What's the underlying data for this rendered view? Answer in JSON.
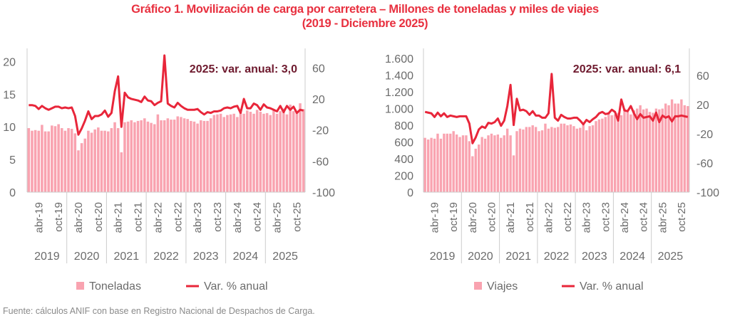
{
  "title": {
    "line1": "Gráfico 1. Movilización de carga por carretera – Millones de toneladas y miles de viajes",
    "line2": "(2019 - Diciembre 2025)"
  },
  "source": "Fuente: cálculos ANIF con base en Registro Nacional de Despachos de Carga.",
  "colors": {
    "bar": "#f9a3b0",
    "line": "#e8263a",
    "annotation": "#6e1a2e",
    "axis_text": "#6b6b6b",
    "grid": "#cccccc"
  },
  "chart_data": [
    {
      "type": "bar+line",
      "id": "toneladas",
      "annotation": "2025: var. anual: 3,0",
      "y_left": {
        "ticks": [
          "0",
          "5",
          "10",
          "15",
          "20"
        ],
        "tick_values": [
          0,
          5,
          10,
          15,
          20
        ],
        "range": [
          0,
          22
        ]
      },
      "y_right": {
        "ticks": [
          "-100",
          "-60",
          "-20",
          "20",
          "60"
        ],
        "tick_values": [
          -100,
          -60,
          -20,
          20,
          60
        ],
        "range": [
          -100,
          85
        ]
      },
      "month_labels": [
        "abr-19",
        "oct-19",
        "abr-20",
        "oct-20",
        "abr-21",
        "oct-21",
        "abr-22",
        "oct-22",
        "abr-23",
        "oct-23",
        "abr-24",
        "oct-24",
        "abr-25",
        "oct-25"
      ],
      "year_labels": [
        "2019",
        "2020",
        "2021",
        "2022",
        "2023",
        "2024",
        "2025"
      ],
      "legend": [
        {
          "label": "Toneladas",
          "kind": "bar"
        },
        {
          "label": "Var. % anual",
          "kind": "line"
        }
      ],
      "series": [
        {
          "name": "Toneladas",
          "axis": "left",
          "kind": "bar",
          "values": [
            9.8,
            9.4,
            9.5,
            9.4,
            10.3,
            9.3,
            9.3,
            10.2,
            10.1,
            10.4,
            9.8,
            9.4,
            9.8,
            9.7,
            9.0,
            6.4,
            7.5,
            8.2,
            9.4,
            9.1,
            9.6,
            9.9,
            9.4,
            9.4,
            9.3,
            9.8,
            10.7,
            9.8,
            6.1,
            10.7,
            10.8,
            11.0,
            10.7,
            10.9,
            11.0,
            11.3,
            10.8,
            10.6,
            10.4,
            11.9,
            11.0,
            11.0,
            11.3,
            11.1,
            11.1,
            11.6,
            11.5,
            11.3,
            11.2,
            10.9,
            10.8,
            10.5,
            11.0,
            10.9,
            10.9,
            11.3,
            11.8,
            11.9,
            12.0,
            11.5,
            11.8,
            11.9,
            12.0,
            11.5,
            12.4,
            12.0,
            12.5,
            12.3,
            12.0,
            12.6,
            12.3,
            12.0,
            12.1,
            11.8,
            12.5,
            12.0,
            12.4,
            12.8,
            11.9,
            13.4,
            12.4,
            12.3,
            13.6,
            12.7
          ]
        },
        {
          "name": "Var. % anual",
          "axis": "right",
          "kind": "line",
          "values": [
            12,
            12,
            11,
            7,
            11,
            8,
            6,
            8,
            10,
            10,
            8,
            9,
            8,
            9,
            -2,
            -26,
            -18,
            -8,
            4,
            -6,
            -2,
            -2,
            0,
            5,
            -3,
            2,
            30,
            49,
            -16,
            28,
            22,
            20,
            19,
            18,
            16,
            23,
            18,
            17,
            12,
            15,
            17,
            76,
            14,
            11,
            9,
            15,
            11,
            8,
            6,
            6,
            6,
            7,
            3,
            0,
            3,
            2,
            4,
            4,
            5,
            8,
            9,
            8,
            10,
            11,
            2,
            20,
            8,
            8,
            14,
            12,
            6,
            13,
            9,
            8,
            6,
            4,
            11,
            3,
            11,
            6,
            10,
            2,
            6,
            5
          ]
        }
      ]
    },
    {
      "type": "bar+line",
      "id": "viajes",
      "annotation": "2025: var. anual: 6,1",
      "y_left": {
        "ticks": [
          "0",
          "200",
          "400",
          "600",
          "800",
          "1.000",
          "1.200",
          "1.400",
          "1.600"
        ],
        "tick_values": [
          0,
          200,
          400,
          600,
          800,
          1000,
          1200,
          1400,
          1600
        ],
        "range": [
          0,
          1720
        ]
      },
      "y_right": {
        "ticks": [
          "-100",
          "-60",
          "-20",
          "20",
          "60"
        ],
        "tick_values": [
          -100,
          -60,
          -20,
          20,
          60
        ],
        "range": [
          -100,
          97
        ]
      },
      "month_labels": [
        "abr-19",
        "oct-19",
        "abr-20",
        "oct-20",
        "abr-21",
        "oct-21",
        "abr-22",
        "oct-22",
        "abr-23",
        "oct-23",
        "abr-24",
        "oct-24",
        "abr-25",
        "oct-25"
      ],
      "year_labels": [
        "2019",
        "2020",
        "2021",
        "2022",
        "2023",
        "2024",
        "2025"
      ],
      "legend": [
        {
          "label": "Viajes",
          "kind": "bar"
        },
        {
          "label": "Var. % anual",
          "kind": "line"
        }
      ],
      "series": [
        {
          "name": "Viajes",
          "axis": "left",
          "kind": "bar",
          "values": [
            650,
            630,
            650,
            640,
            700,
            640,
            700,
            700,
            700,
            730,
            690,
            660,
            680,
            680,
            610,
            430,
            520,
            570,
            660,
            640,
            680,
            700,
            680,
            690,
            650,
            680,
            760,
            680,
            440,
            730,
            760,
            750,
            780,
            780,
            800,
            780,
            730,
            740,
            820,
            760,
            780,
            770,
            780,
            820,
            820,
            800,
            810,
            790,
            760,
            770,
            820,
            740,
            790,
            800,
            850,
            870,
            880,
            900,
            950,
            920,
            930,
            950,
            920,
            1000,
            960,
            930,
            980,
            1000,
            1040,
            990,
            1000,
            960,
            950,
            1000,
            990,
            1000,
            1060,
            1040,
            1110,
            1060,
            1060,
            1110,
            1040,
            1030
          ]
        },
        {
          "name": "Var. % anual",
          "axis": "right",
          "kind": "line",
          "values": [
            10,
            9,
            8,
            3,
            9,
            4,
            8,
            3,
            5,
            4,
            3,
            4,
            4,
            4,
            -6,
            -33,
            -25,
            -14,
            -10,
            -12,
            -5,
            -6,
            -4,
            1,
            -9,
            -2,
            18,
            47,
            -8,
            28,
            12,
            13,
            11,
            6,
            11,
            5,
            5,
            2,
            2,
            8,
            62,
            2,
            -2,
            6,
            3,
            1,
            1,
            2,
            2,
            -2,
            -7,
            -1,
            -4,
            0,
            3,
            8,
            10,
            7,
            8,
            13,
            10,
            -2,
            27,
            12,
            11,
            18,
            8,
            0,
            7,
            2,
            3,
            4,
            -2,
            9,
            -4,
            5,
            2,
            4,
            -3,
            4,
            4,
            5,
            4,
            3
          ]
        }
      ]
    }
  ]
}
